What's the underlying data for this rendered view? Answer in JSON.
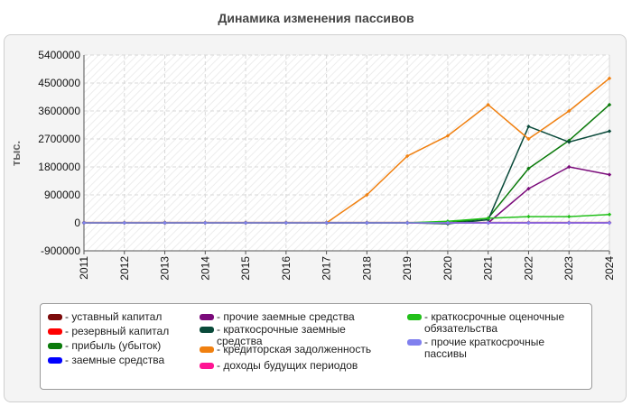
{
  "chart_data": {
    "type": "line",
    "title": "Динамика изменения пассивов",
    "ylabel": "тыс.",
    "xlabel": "",
    "x": [
      "2011",
      "2012",
      "2013",
      "2014",
      "2015",
      "2016",
      "2017",
      "2018",
      "2019",
      "2020",
      "2021",
      "2022",
      "2023",
      "2024"
    ],
    "ylim": [
      -900000,
      5400000
    ],
    "yticks": [
      -900000,
      0,
      900000,
      1800000,
      2700000,
      3600000,
      4500000,
      5400000
    ],
    "grid": true,
    "legend_position": "bottom",
    "series": [
      {
        "name": "уставный капитал",
        "color": "#7b0a0a",
        "values": [
          10000,
          10000,
          10000,
          10000,
          10000,
          10000,
          10000,
          10000,
          10000,
          10000,
          10000,
          10000,
          10000,
          10000
        ]
      },
      {
        "name": "резервный капитал",
        "color": "#ff0000",
        "values": [
          0,
          0,
          0,
          0,
          0,
          0,
          0,
          0,
          0,
          0,
          0,
          0,
          0,
          0
        ]
      },
      {
        "name": "прибыль (убыток)",
        "color": "#0a7a0a",
        "values": [
          0,
          0,
          0,
          0,
          0,
          0,
          0,
          0,
          0,
          0,
          150000,
          1750000,
          2650000,
          3800000
        ]
      },
      {
        "name": "заемные средства",
        "color": "#0000ff",
        "values": [
          0,
          0,
          0,
          0,
          0,
          0,
          0,
          0,
          0,
          0,
          0,
          0,
          0,
          0
        ]
      },
      {
        "name": "прочие заемные средства",
        "color": "#7a0a7a",
        "values": [
          0,
          0,
          0,
          0,
          0,
          0,
          0,
          0,
          0,
          0,
          0,
          1100000,
          1800000,
          1550000
        ]
      },
      {
        "name": "краткосрочные заемные средства",
        "color": "#0a4a3a",
        "values": [
          0,
          0,
          0,
          0,
          0,
          0,
          0,
          0,
          0,
          -30000,
          100000,
          3100000,
          2600000,
          2950000
        ]
      },
      {
        "name": "кредиторская задолженность",
        "color": "#f08010",
        "values": [
          0,
          0,
          0,
          0,
          0,
          0,
          0,
          900000,
          2150000,
          2800000,
          3800000,
          2700000,
          3600000,
          4650000
        ]
      },
      {
        "name": "доходы будущих периодов",
        "color": "#ff1493",
        "values": [
          0,
          0,
          0,
          0,
          0,
          0,
          0,
          0,
          0,
          0,
          0,
          0,
          0,
          0
        ]
      },
      {
        "name": "краткосрочные оценочные обязательства",
        "color": "#22c01a",
        "values": [
          0,
          0,
          0,
          0,
          0,
          0,
          0,
          0,
          0,
          50000,
          150000,
          200000,
          200000,
          270000
        ]
      },
      {
        "name": "прочие краткосрочные пассивы",
        "color": "#8080ee",
        "values": [
          0,
          0,
          0,
          0,
          0,
          0,
          0,
          0,
          0,
          0,
          0,
          0,
          0,
          0
        ]
      }
    ]
  }
}
